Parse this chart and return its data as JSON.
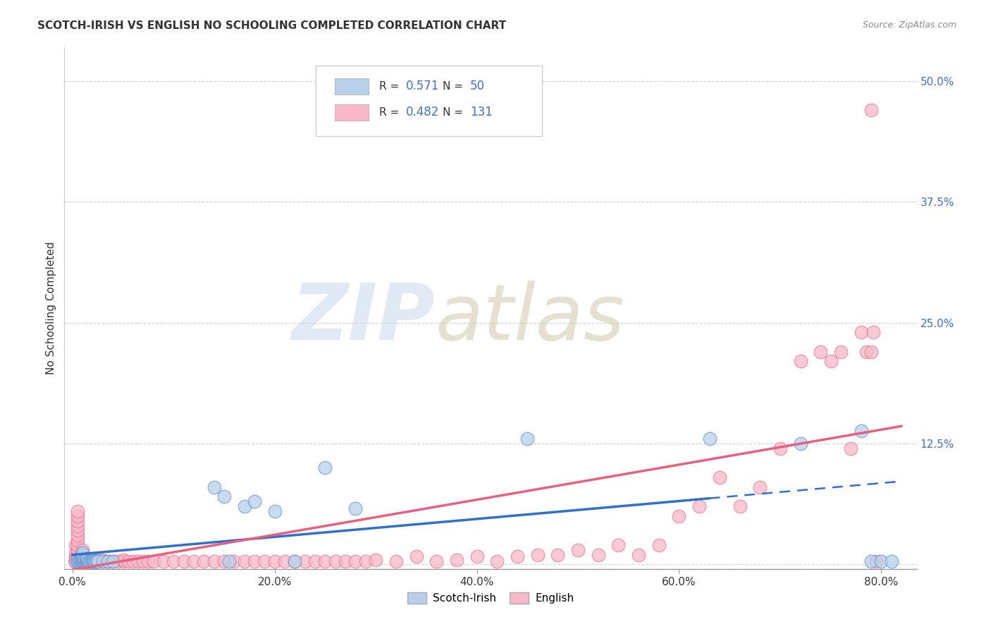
{
  "title": "SCOTCH-IRISH VS ENGLISH NO SCHOOLING COMPLETED CORRELATION CHART",
  "source": "Source: ZipAtlas.com",
  "ylabel": "No Schooling Completed",
  "xlim": [
    -0.008,
    0.835
  ],
  "ylim": [
    -0.005,
    0.535
  ],
  "xticks": [
    0.0,
    0.2,
    0.4,
    0.6,
    0.8
  ],
  "xticklabels": [
    "0.0%",
    "20.0%",
    "40.0%",
    "60.0%",
    "80.0%"
  ],
  "ytick_positions": [
    0.0,
    0.125,
    0.25,
    0.375,
    0.5
  ],
  "ytick_labels": [
    "",
    "12.5%",
    "25.0%",
    "37.5%",
    "50.0%"
  ],
  "scotch_irish_R": 0.571,
  "scotch_irish_N": 50,
  "english_R": 0.482,
  "english_N": 131,
  "si_face": "#B8D0EA",
  "si_edge": "#6090C8",
  "en_face": "#F8B8C8",
  "en_edge": "#E87090",
  "si_line": "#3070C8",
  "en_line": "#E86080",
  "legend_label_1": "Scotch-Irish",
  "legend_label_2": "English",
  "bg": "#FFFFFF",
  "grid_color": "#CCCCCC",
  "text_color": "#333333",
  "source_color": "#888888",
  "tick_color": "#4070C0",
  "si_x": [
    0.005,
    0.005,
    0.006,
    0.007,
    0.008,
    0.008,
    0.009,
    0.01,
    0.01,
    0.01,
    0.01,
    0.01,
    0.011,
    0.012,
    0.012,
    0.013,
    0.014,
    0.015,
    0.015,
    0.015,
    0.016,
    0.017,
    0.018,
    0.019,
    0.02,
    0.02,
    0.021,
    0.022,
    0.023,
    0.024,
    0.025,
    0.03,
    0.035,
    0.04,
    0.14,
    0.15,
    0.155,
    0.17,
    0.18,
    0.2,
    0.22,
    0.25,
    0.28,
    0.45,
    0.63,
    0.72,
    0.78,
    0.79,
    0.8,
    0.81
  ],
  "si_y": [
    0.003,
    0.005,
    0.003,
    0.004,
    0.003,
    0.005,
    0.004,
    0.003,
    0.005,
    0.007,
    0.01,
    0.012,
    0.004,
    0.003,
    0.005,
    0.004,
    0.003,
    0.003,
    0.005,
    0.006,
    0.004,
    0.003,
    0.004,
    0.003,
    0.003,
    0.005,
    0.004,
    0.003,
    0.004,
    0.003,
    0.003,
    0.003,
    0.003,
    0.003,
    0.08,
    0.07,
    0.003,
    0.06,
    0.065,
    0.055,
    0.003,
    0.1,
    0.058,
    0.13,
    0.13,
    0.125,
    0.138,
    0.003,
    0.003,
    0.003
  ],
  "en_x": [
    0.003,
    0.003,
    0.003,
    0.003,
    0.003,
    0.004,
    0.004,
    0.004,
    0.005,
    0.005,
    0.005,
    0.005,
    0.005,
    0.005,
    0.005,
    0.005,
    0.005,
    0.005,
    0.005,
    0.005,
    0.005,
    0.006,
    0.006,
    0.007,
    0.007,
    0.008,
    0.008,
    0.008,
    0.009,
    0.009,
    0.01,
    0.01,
    0.01,
    0.01,
    0.01,
    0.01,
    0.01,
    0.01,
    0.011,
    0.011,
    0.012,
    0.012,
    0.013,
    0.013,
    0.014,
    0.015,
    0.015,
    0.015,
    0.016,
    0.017,
    0.018,
    0.019,
    0.02,
    0.02,
    0.021,
    0.022,
    0.023,
    0.024,
    0.025,
    0.025,
    0.03,
    0.03,
    0.035,
    0.04,
    0.045,
    0.05,
    0.05,
    0.055,
    0.06,
    0.065,
    0.07,
    0.075,
    0.08,
    0.09,
    0.1,
    0.11,
    0.12,
    0.13,
    0.14,
    0.15,
    0.16,
    0.17,
    0.18,
    0.19,
    0.2,
    0.21,
    0.22,
    0.23,
    0.24,
    0.25,
    0.26,
    0.27,
    0.28,
    0.29,
    0.3,
    0.32,
    0.34,
    0.36,
    0.38,
    0.4,
    0.42,
    0.44,
    0.46,
    0.48,
    0.5,
    0.52,
    0.54,
    0.56,
    0.58,
    0.6,
    0.62,
    0.64,
    0.66,
    0.68,
    0.7,
    0.72,
    0.74,
    0.75,
    0.76,
    0.77,
    0.78,
    0.785,
    0.79,
    0.79,
    0.792,
    0.795,
    0.003,
    0.003,
    0.003,
    0.003,
    0.003
  ],
  "en_y": [
    0.003,
    0.005,
    0.008,
    0.012,
    0.02,
    0.003,
    0.005,
    0.008,
    0.003,
    0.005,
    0.007,
    0.01,
    0.015,
    0.02,
    0.025,
    0.03,
    0.035,
    0.04,
    0.045,
    0.05,
    0.055,
    0.003,
    0.005,
    0.003,
    0.005,
    0.003,
    0.005,
    0.008,
    0.003,
    0.005,
    0.003,
    0.004,
    0.005,
    0.006,
    0.008,
    0.01,
    0.012,
    0.015,
    0.003,
    0.005,
    0.003,
    0.005,
    0.003,
    0.005,
    0.003,
    0.003,
    0.005,
    0.003,
    0.003,
    0.003,
    0.003,
    0.003,
    0.003,
    0.005,
    0.003,
    0.003,
    0.003,
    0.003,
    0.003,
    0.005,
    0.003,
    0.005,
    0.003,
    0.003,
    0.003,
    0.003,
    0.005,
    0.003,
    0.003,
    0.003,
    0.003,
    0.003,
    0.003,
    0.003,
    0.003,
    0.003,
    0.003,
    0.003,
    0.003,
    0.003,
    0.003,
    0.003,
    0.003,
    0.003,
    0.003,
    0.003,
    0.003,
    0.003,
    0.003,
    0.003,
    0.003,
    0.003,
    0.003,
    0.003,
    0.005,
    0.003,
    0.008,
    0.003,
    0.005,
    0.008,
    0.003,
    0.008,
    0.01,
    0.01,
    0.015,
    0.01,
    0.02,
    0.01,
    0.02,
    0.05,
    0.06,
    0.09,
    0.06,
    0.08,
    0.12,
    0.21,
    0.22,
    0.21,
    0.22,
    0.12,
    0.24,
    0.22,
    0.22,
    0.47,
    0.24,
    0.003,
    0.003,
    0.003,
    0.003,
    0.003,
    0.003
  ]
}
